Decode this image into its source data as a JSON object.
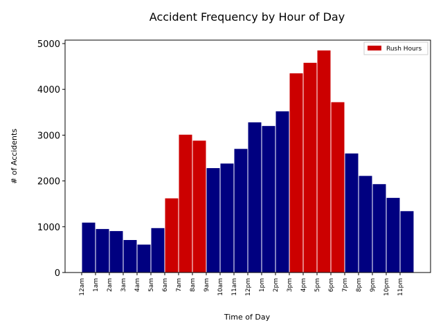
{
  "chart_data": {
    "type": "bar",
    "title": "Accident Frequency by Hour of Day",
    "xlabel": "Time of Day",
    "ylabel": "# of Accidents",
    "ylim": [
      0,
      5000
    ],
    "yticks": [
      0,
      1000,
      2000,
      3000,
      4000,
      5000
    ],
    "categories": [
      "12am",
      "1am",
      "2am",
      "3am",
      "4am",
      "5am",
      "6am",
      "7am",
      "8am",
      "9am",
      "10am",
      "11am",
      "12pm",
      "1pm",
      "2pm",
      "3pm",
      "4pm",
      "5pm",
      "6pm",
      "7pm",
      "8pm",
      "9pm",
      "10pm",
      "11pm"
    ],
    "values": [
      1090,
      950,
      905,
      710,
      610,
      970,
      1620,
      3010,
      2880,
      2280,
      2380,
      2700,
      3280,
      3200,
      3520,
      4350,
      4580,
      4850,
      3720,
      2600,
      2110,
      1930,
      1630,
      1340
    ],
    "rush_hours": [
      "6am",
      "7am",
      "8am",
      "3pm",
      "4pm",
      "5pm",
      "6pm"
    ],
    "colors": {
      "normal": "#000080",
      "rush": "#cc0000"
    },
    "legend": {
      "label": "Rush Hours",
      "position": "top-right"
    },
    "grid": false
  }
}
